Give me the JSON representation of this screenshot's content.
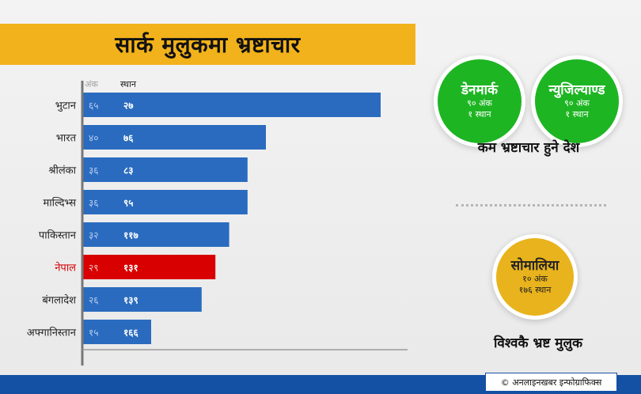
{
  "title": "सार्क मुलुकमा भ्रष्टाचार",
  "chart_data": {
    "type": "bar",
    "orientation": "horizontal",
    "score_header": "अंक",
    "rank_header": "स्थान",
    "categories": [
      "भुटान",
      "भारत",
      "श्रीलंका",
      "माल्दिभ्स",
      "पाकिस्तान",
      "नेपाल",
      "बंगलादेश",
      "अफ्गानिस्तान"
    ],
    "score_labels": [
      "६५",
      "४०",
      "३६",
      "३६",
      "३२",
      "२९",
      "२६",
      "१५"
    ],
    "rank_labels": [
      "२७",
      "७६",
      "८३",
      "९५",
      "११७",
      "१३१",
      "१३९",
      "१६६"
    ],
    "values": [
      65,
      40,
      36,
      36,
      32,
      29,
      26,
      15
    ],
    "ranks": [
      27,
      76,
      83,
      95,
      117,
      131,
      139,
      166
    ],
    "highlight": "नेपाल",
    "xlim": [
      0,
      100
    ],
    "grid": false,
    "colors": {
      "bar": "#2a6bbf",
      "highlight_bar": "#d80000",
      "highlight_label": "#d80000",
      "label": "#222222",
      "score_text": "#b9cff0",
      "rank_text": "#ffffff"
    }
  },
  "least_corrupt": {
    "countries": [
      {
        "name": "डेनमार्क",
        "score": "९० अंक",
        "rank": "१ स्थान"
      },
      {
        "name": "न्युजिल्याण्ड",
        "score": "९० अंक",
        "rank": "१ स्थान"
      }
    ],
    "caption": "कम भ्रष्टाचार हुने देश",
    "color": "#1eb523"
  },
  "most_corrupt": {
    "name": "सोमालिया",
    "score": "१० अंक",
    "rank": "१७६ स्थान",
    "caption": "विश्वकै भ्रष्ट मुलुक",
    "color": "#e8b31c"
  },
  "footer": {
    "credit": "© अनलाइनखबर इन्फोग्राफिक्स",
    "color": "#1450a3"
  }
}
